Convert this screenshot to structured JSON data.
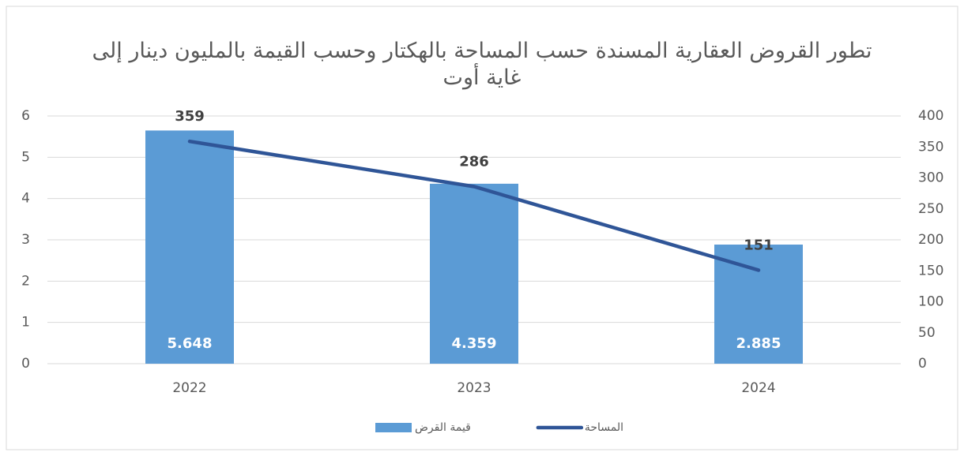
{
  "chart_data": {
    "type": "combo",
    "title": "تطور القروض العقارية المسندة حسب المساحة بالهكتار وحسب القيمة بالمليون دينار إلى غاية أوت",
    "categories": [
      "2022",
      "2023",
      "2024"
    ],
    "series": [
      {
        "name": "قيمة القرض",
        "type": "bar",
        "color": "#5b9bd5",
        "values": [
          5.648,
          4.359,
          2.885
        ]
      },
      {
        "name": "المساحة",
        "type": "line",
        "axis": "y2",
        "color": "#2f5597",
        "values": [
          359,
          286,
          151
        ]
      }
    ],
    "ylim": [
      0,
      6
    ],
    "yticks": [
      0,
      1,
      2,
      3,
      4,
      5,
      6
    ],
    "y2lim": [
      0,
      400
    ],
    "y2ticks": [
      0,
      50,
      100,
      150,
      200,
      250,
      300,
      350,
      400
    ],
    "grid": true,
    "legend": "bottom"
  }
}
